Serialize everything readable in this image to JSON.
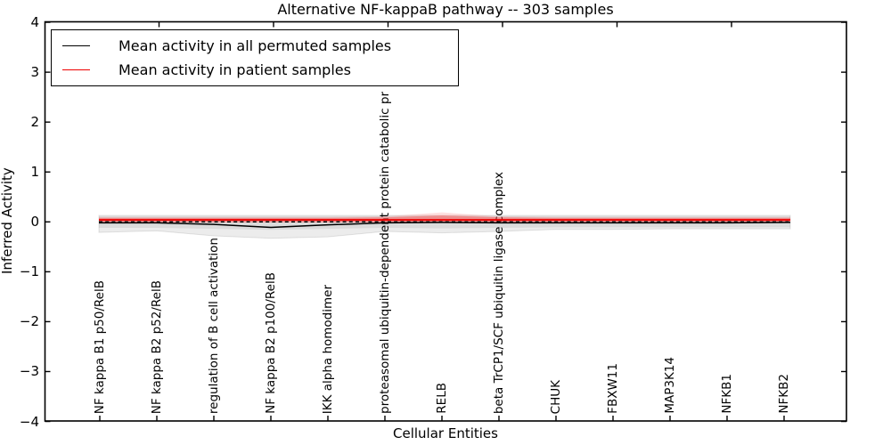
{
  "title": "Alternative NF-kappaB pathway -- 303 samples",
  "axes": {
    "ylabel": "Inferred Activity",
    "xlabel": "Cellular Entities",
    "ytick_labels": [
      "4",
      "3",
      "2",
      "1",
      "0",
      "−1",
      "−2",
      "−3",
      "−4"
    ],
    "ytick_values": [
      4,
      3,
      2,
      1,
      0,
      -1,
      -2,
      -3,
      -4
    ]
  },
  "legend": {
    "items": [
      {
        "label": "Mean activity in all permuted samples",
        "color": "#000000"
      },
      {
        "label": "Mean activity in patient samples",
        "color": "#ee0000"
      }
    ]
  },
  "chart_data": {
    "type": "line",
    "title": "Alternative NF-kappaB pathway -- 303 samples",
    "xlabel": "Cellular Entities",
    "ylabel": "Inferred Activity",
    "ylim": [
      -4,
      4
    ],
    "grid": false,
    "legend_position": "upper left",
    "categories": [
      "NF kappa B1 p50/RelB",
      "NF kappa B2 p52/RelB",
      "regulation of B cell activation",
      "NF kappa B2 p100/RelB",
      "IKK alpha homodimer",
      "proteasomal ubiquitin-dependent protein catabolic pr",
      "RELB",
      "beta TrCP1/SCF ubiquitin ligase complex",
      "CHUK",
      "FBXW11",
      "MAP3K14",
      "NFKB1",
      "NFKB2"
    ],
    "series": [
      {
        "name": "Mean activity in all permuted samples",
        "color": "#000000",
        "style": "solid",
        "values": [
          -0.02,
          -0.02,
          -0.05,
          -0.11,
          -0.06,
          -0.02,
          -0.01,
          -0.02,
          -0.02,
          -0.02,
          -0.02,
          -0.02,
          -0.01
        ]
      },
      {
        "name": "Mean activity in patient samples",
        "color": "#ee0000",
        "style": "solid",
        "values": [
          0.04,
          0.04,
          0.04,
          0.04,
          0.04,
          0.04,
          0.04,
          0.04,
          0.04,
          0.04,
          0.04,
          0.04,
          0.04
        ]
      },
      {
        "name": "zero-reference",
        "color": "#000000",
        "style": "dashed",
        "values": [
          0,
          0,
          0,
          0,
          0,
          0,
          0,
          0,
          0,
          0,
          0,
          0,
          0
        ]
      }
    ],
    "bands": [
      {
        "name": "permuted-envelope-outer",
        "color": "rgba(0,0,0,0.075)",
        "edge": "rgba(0,0,0,0.10)",
        "high": [
          0.13,
          0.13,
          0.13,
          0.13,
          0.13,
          0.13,
          0.13,
          0.13,
          0.13,
          0.13,
          0.13,
          0.13,
          0.13
        ],
        "low": [
          -0.21,
          -0.18,
          -0.28,
          -0.33,
          -0.3,
          -0.19,
          -0.22,
          -0.19,
          -0.15,
          -0.15,
          -0.14,
          -0.14,
          -0.14
        ]
      },
      {
        "name": "permuted-envelope-inner",
        "color": "rgba(0,0,0,0.07)",
        "edge": "none",
        "high": [
          0.11,
          0.11,
          0.11,
          0.11,
          0.11,
          0.11,
          0.11,
          0.11,
          0.11,
          0.11,
          0.11,
          0.11,
          0.11
        ],
        "low": [
          -0.12,
          -0.12,
          -0.14,
          -0.16,
          -0.14,
          -0.12,
          -0.13,
          -0.12,
          -0.11,
          -0.11,
          -0.11,
          -0.11,
          -0.11
        ]
      },
      {
        "name": "patient-envelope-outer",
        "color": "rgba(255,60,60,0.16)",
        "edge": "none",
        "high": [
          0.1,
          0.1,
          0.1,
          0.1,
          0.1,
          0.11,
          0.19,
          0.11,
          0.1,
          0.1,
          0.1,
          0.1,
          0.1
        ],
        "low": [
          -0.015,
          -0.015,
          -0.015,
          -0.015,
          -0.015,
          -0.015,
          -0.015,
          -0.015,
          -0.015,
          -0.015,
          -0.015,
          -0.015,
          -0.015
        ]
      },
      {
        "name": "patient-envelope-inner",
        "color": "rgba(255,40,40,0.33)",
        "edge": "none",
        "high": [
          0.08,
          0.08,
          0.08,
          0.08,
          0.08,
          0.09,
          0.13,
          0.09,
          0.08,
          0.08,
          0.08,
          0.08,
          0.08
        ],
        "low": [
          -0.005,
          -0.005,
          -0.005,
          -0.005,
          -0.005,
          -0.005,
          -0.005,
          -0.005,
          -0.005,
          -0.005,
          -0.005,
          -0.005,
          -0.005
        ]
      }
    ]
  }
}
